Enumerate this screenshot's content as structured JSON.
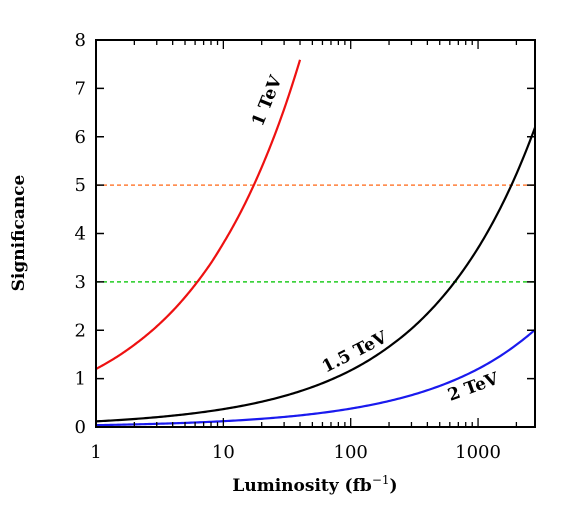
{
  "chart_data": {
    "type": "line",
    "title": "",
    "xlabel": "Luminosity (fb",
    "xlabel_sup": "−1",
    "xlabel_close": ")",
    "ylabel": "Significance",
    "xscale": "log",
    "xlim": [
      1,
      2800
    ],
    "ylim": [
      0,
      8
    ],
    "grid": false,
    "x_ticks": [
      1,
      10,
      100,
      1000
    ],
    "x_tick_labels": [
      "1",
      "10",
      "100",
      "1000"
    ],
    "y_ticks": [
      0,
      1,
      2,
      3,
      4,
      5,
      6,
      7,
      8
    ],
    "y_tick_labels": [
      "0",
      "1",
      "2",
      "3",
      "4",
      "5",
      "6",
      "7",
      "8"
    ],
    "series": [
      {
        "name": "1 TeV",
        "color": "#ee1111",
        "x": [
          1,
          1.5,
          2,
          3,
          4,
          6,
          8,
          10,
          15,
          20,
          25,
          30,
          35,
          40
        ],
        "y": [
          1.2,
          1.47,
          1.7,
          2.08,
          2.4,
          2.94,
          3.39,
          3.8,
          4.65,
          5.37,
          6.0,
          6.57,
          7.1,
          7.59
        ]
      },
      {
        "name": "1.5 TeV",
        "color": "#000000",
        "x": [
          1,
          3,
          10,
          30,
          100,
          200,
          300,
          500,
          1000,
          1500,
          2000,
          2800
        ],
        "y": [
          0.117,
          0.203,
          0.37,
          0.64,
          1.17,
          1.66,
          2.03,
          2.62,
          3.7,
          4.53,
          5.23,
          6.19
        ]
      },
      {
        "name": "2 TeV",
        "color": "#1a1aee",
        "x": [
          1,
          3,
          10,
          30,
          100,
          300,
          1000,
          1500,
          2000,
          2800
        ],
        "y": [
          0.038,
          0.066,
          0.12,
          0.208,
          0.38,
          0.658,
          1.2,
          1.47,
          1.7,
          2.01
        ]
      }
    ],
    "reference_lines": [
      {
        "y": 5,
        "color": "#ff7f3a",
        "style": "dashed"
      },
      {
        "y": 3,
        "color": "#22cc22",
        "style": "dashed"
      }
    ]
  }
}
